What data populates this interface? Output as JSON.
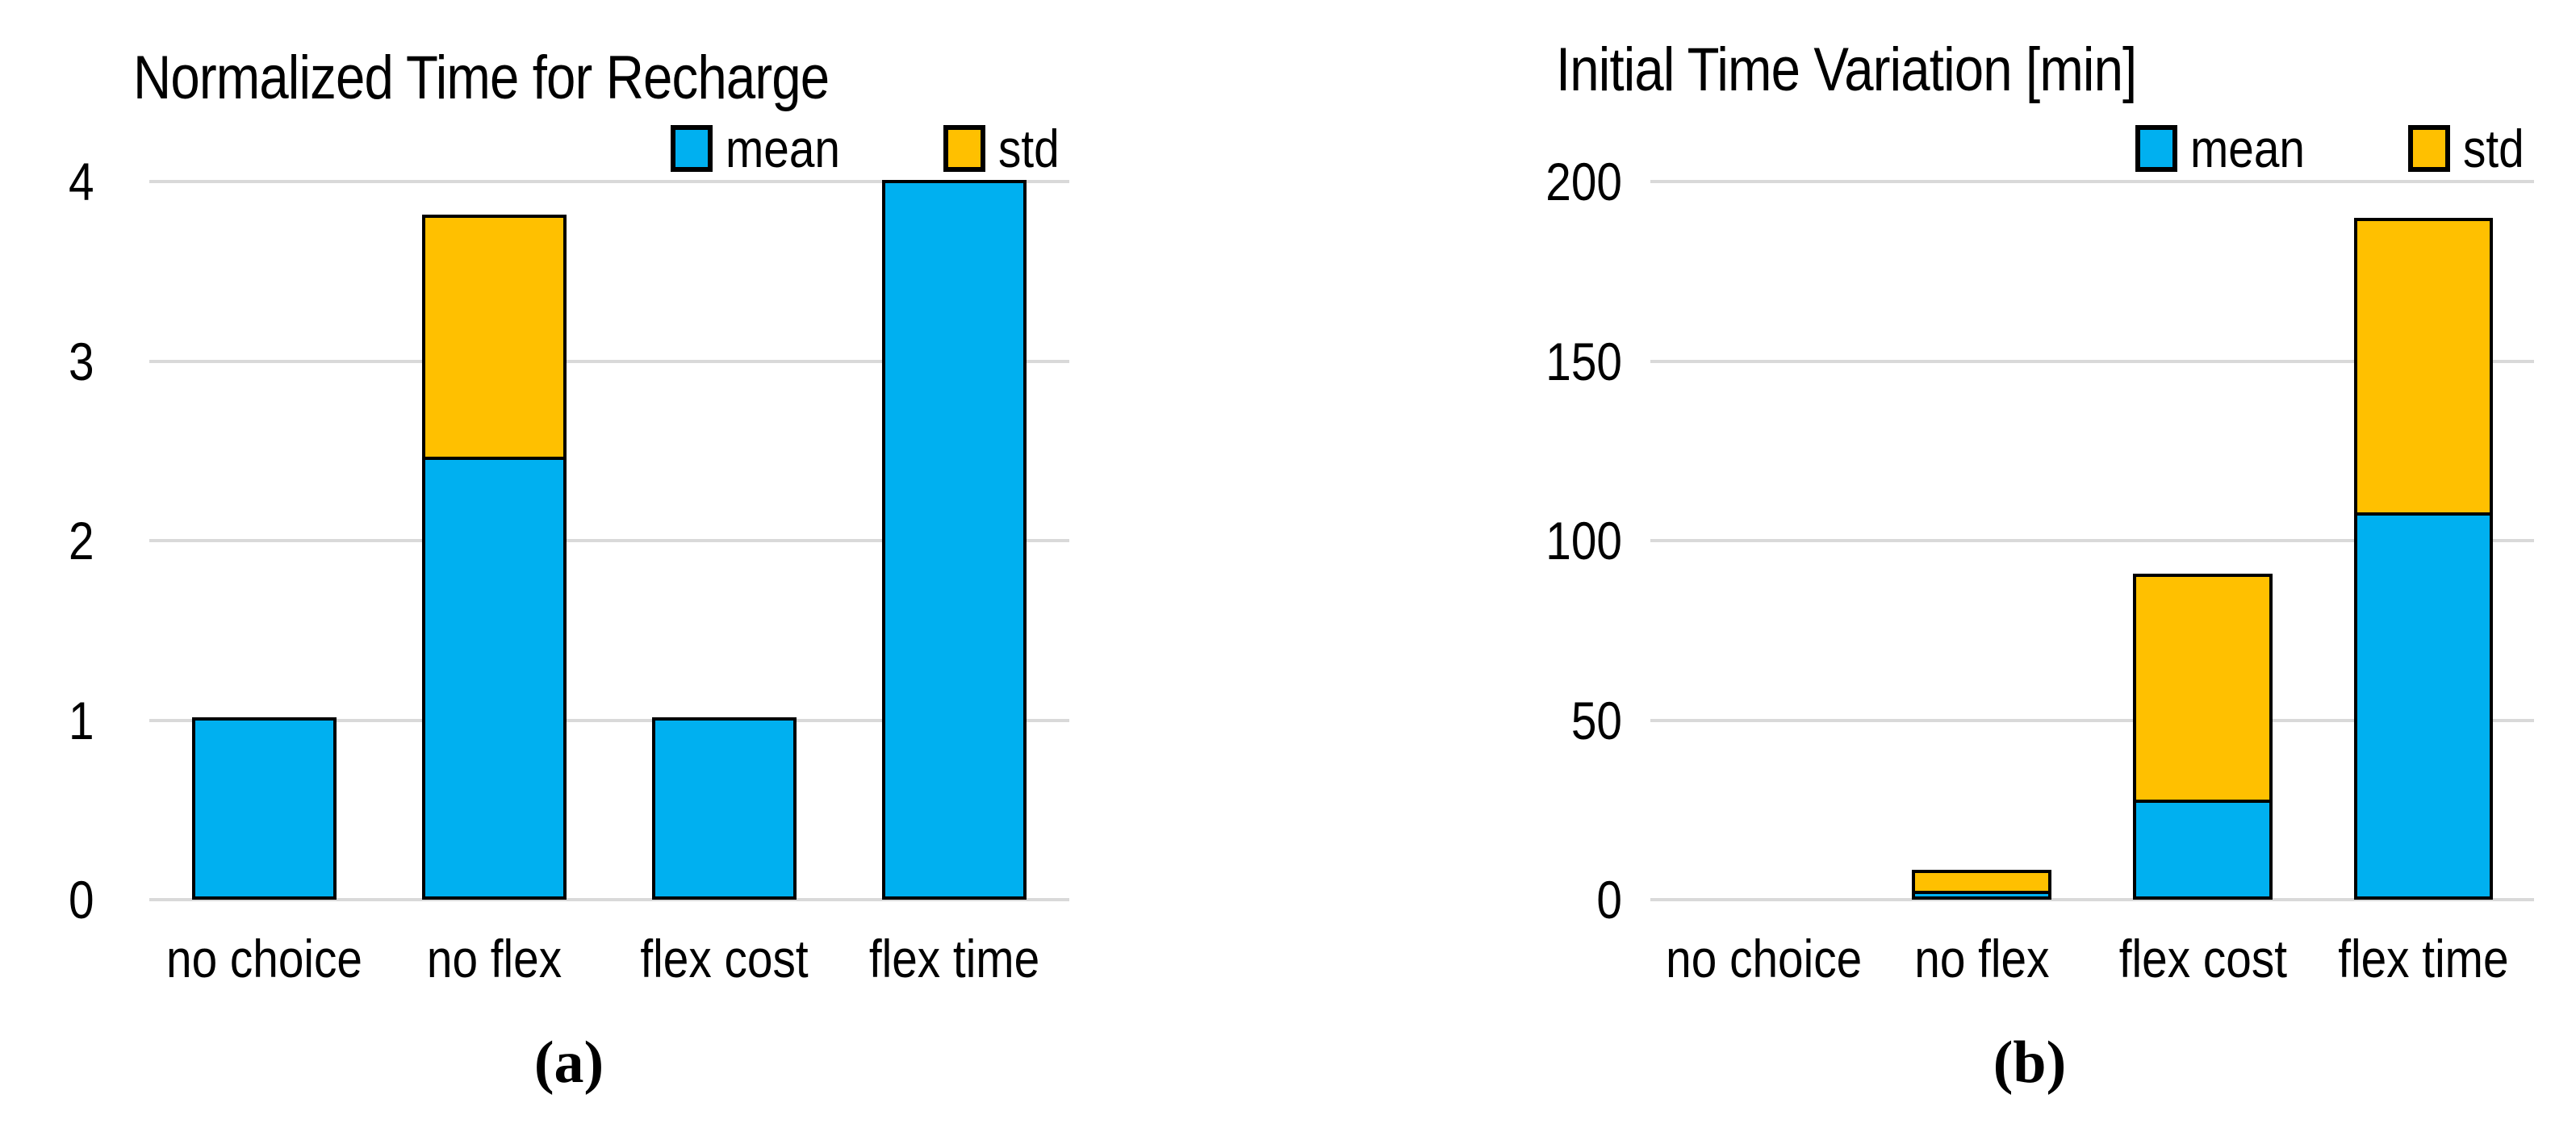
{
  "figure": {
    "background_color": "#ffffff",
    "text_color": "#000000"
  },
  "chart_data": [
    {
      "type": "bar",
      "stacked": true,
      "title": "Normalized Time for Recharge",
      "caption": "(a)",
      "categories": [
        "no choice",
        "no flex",
        "flex cost",
        "flex time"
      ],
      "series": [
        {
          "name": "mean",
          "color": "#00B0F0",
          "values": [
            1.0,
            2.45,
            1.0,
            3.99
          ]
        },
        {
          "name": "std",
          "color": "#FFC000",
          "values": [
            0,
            1.35,
            0,
            0
          ]
        }
      ],
      "ylim": [
        0,
        4
      ],
      "yticks": [
        0,
        1,
        2,
        3,
        4
      ],
      "xlabel": "",
      "ylabel": "",
      "grid": true,
      "grid_color": "#D9D9D9",
      "bar_border_color": "#000000",
      "legend_position": "top-right",
      "ytick_align": "left"
    },
    {
      "type": "bar",
      "stacked": true,
      "title": "Initial Time Variation [min]",
      "caption": "(b)",
      "categories": [
        "no choice",
        "no flex",
        "flex cost",
        "flex time"
      ],
      "series": [
        {
          "name": "mean",
          "color": "#00B0F0",
          "values": [
            0,
            1.5,
            27,
            107
          ]
        },
        {
          "name": "std",
          "color": "#FFC000",
          "values": [
            0,
            6,
            63,
            82
          ]
        }
      ],
      "ylim": [
        0,
        200
      ],
      "yticks": [
        0,
        50,
        100,
        150,
        200
      ],
      "xlabel": "",
      "ylabel": "",
      "grid": true,
      "grid_color": "#D9D9D9",
      "bar_border_color": "#000000",
      "legend_position": "top-right",
      "ytick_align": "right"
    }
  ]
}
